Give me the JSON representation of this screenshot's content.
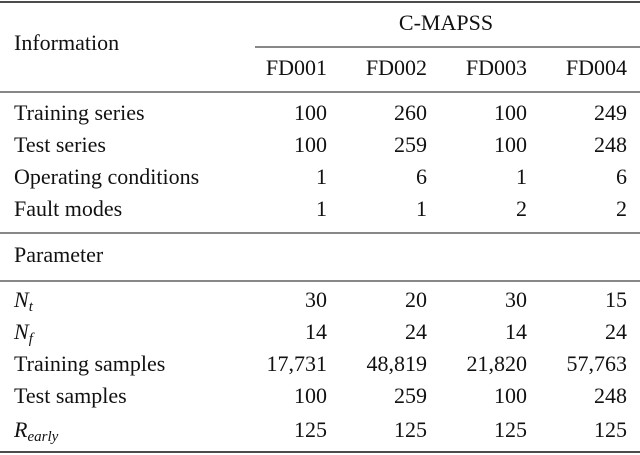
{
  "header": {
    "info": "Information",
    "group": "C-MAPSS",
    "columns": [
      "FD001",
      "FD002",
      "FD003",
      "FD004"
    ]
  },
  "sections": [
    {
      "rows": [
        {
          "label": "Training series",
          "values": [
            "100",
            "260",
            "100",
            "249"
          ]
        },
        {
          "label": "Test series",
          "values": [
            "100",
            "259",
            "100",
            "248"
          ]
        },
        {
          "label": "Operating conditions",
          "values": [
            "1",
            "6",
            "1",
            "6"
          ]
        },
        {
          "label": "Fault modes",
          "values": [
            "1",
            "1",
            "2",
            "2"
          ]
        }
      ]
    },
    {
      "title": "Parameter",
      "rows": [
        {
          "label": {
            "base": "N",
            "sub": "t"
          },
          "values": [
            "30",
            "20",
            "30",
            "15"
          ]
        },
        {
          "label": {
            "base": "N",
            "sub": "f"
          },
          "values": [
            "14",
            "24",
            "14",
            "24"
          ]
        },
        {
          "label": "Training samples",
          "values": [
            "17,731",
            "48,819",
            "21,820",
            "57,763"
          ]
        },
        {
          "label": "Test samples",
          "values": [
            "100",
            "259",
            "100",
            "248"
          ]
        },
        {
          "label": {
            "base": "R",
            "sub": "early"
          },
          "values": [
            "125",
            "125",
            "125",
            "125"
          ]
        }
      ]
    }
  ]
}
